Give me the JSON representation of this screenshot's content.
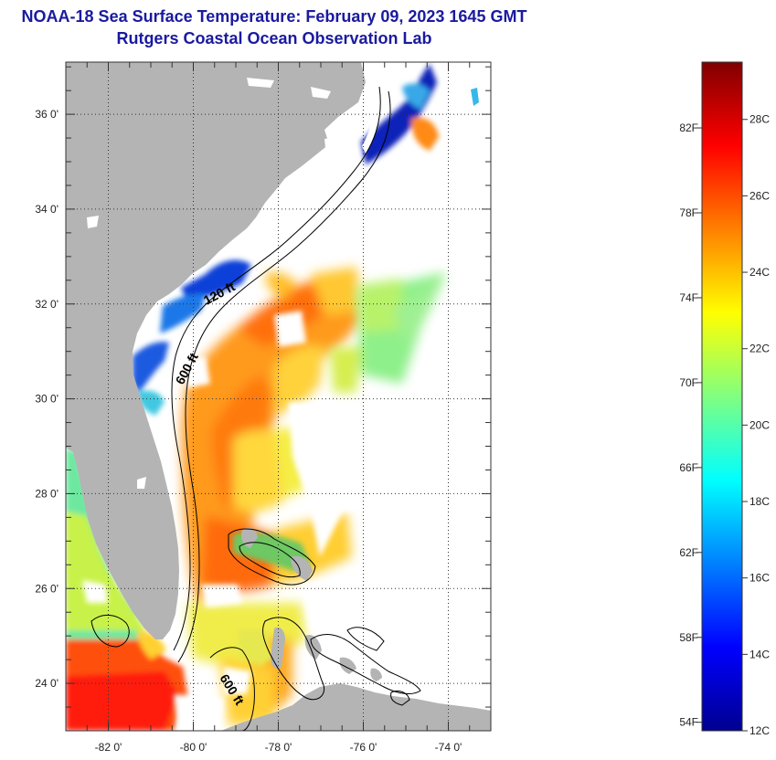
{
  "header": {
    "title": "NOAA-18 Sea Surface Temperature:  February 09, 2023 1645 GMT",
    "subtitle": "Rutgers Coastal Ocean Observation Lab"
  },
  "map": {
    "lat_labels": [
      "36 0'",
      "34 0'",
      "32 0'",
      "30 0'",
      "28 0'",
      "26 0'",
      "24 0'"
    ],
    "lat_values": [
      36,
      34,
      32,
      30,
      28,
      26,
      24
    ],
    "lon_labels": [
      "-82 0'",
      "-80 0'",
      "-78 0'",
      "-76 0'",
      "-74 0'"
    ],
    "lon_values": [
      -82,
      -80,
      -78,
      -76,
      -74
    ],
    "lon_range": [
      -83.0,
      -73.0
    ],
    "lat_range": [
      23.0,
      37.1
    ],
    "contour_labels": [
      "120 ft",
      "600 ft",
      "600 ft"
    ],
    "colors": {
      "land": "#b4b4b4",
      "no_data": "#ffffff",
      "frame": "#333333"
    }
  },
  "colorbar": {
    "fahrenheit_labels": [
      "82F",
      "78F",
      "74F",
      "70F",
      "66F",
      "62F",
      "58F",
      "54F"
    ],
    "fahrenheit_values": [
      82,
      78,
      74,
      70,
      66,
      62,
      58,
      54
    ],
    "celsius_labels": [
      "28C",
      "26C",
      "24C",
      "22C",
      "20C",
      "18C",
      "16C",
      "14C",
      "12C"
    ],
    "celsius_values": [
      28,
      26,
      24,
      22,
      20,
      18,
      16,
      14,
      12
    ],
    "range_c": [
      12,
      29.5
    ],
    "gradient_stops": [
      "#00008f",
      "#0000ff",
      "#0080ff",
      "#00ffff",
      "#80ff80",
      "#ffff00",
      "#ff8000",
      "#ff0000",
      "#800000"
    ]
  }
}
